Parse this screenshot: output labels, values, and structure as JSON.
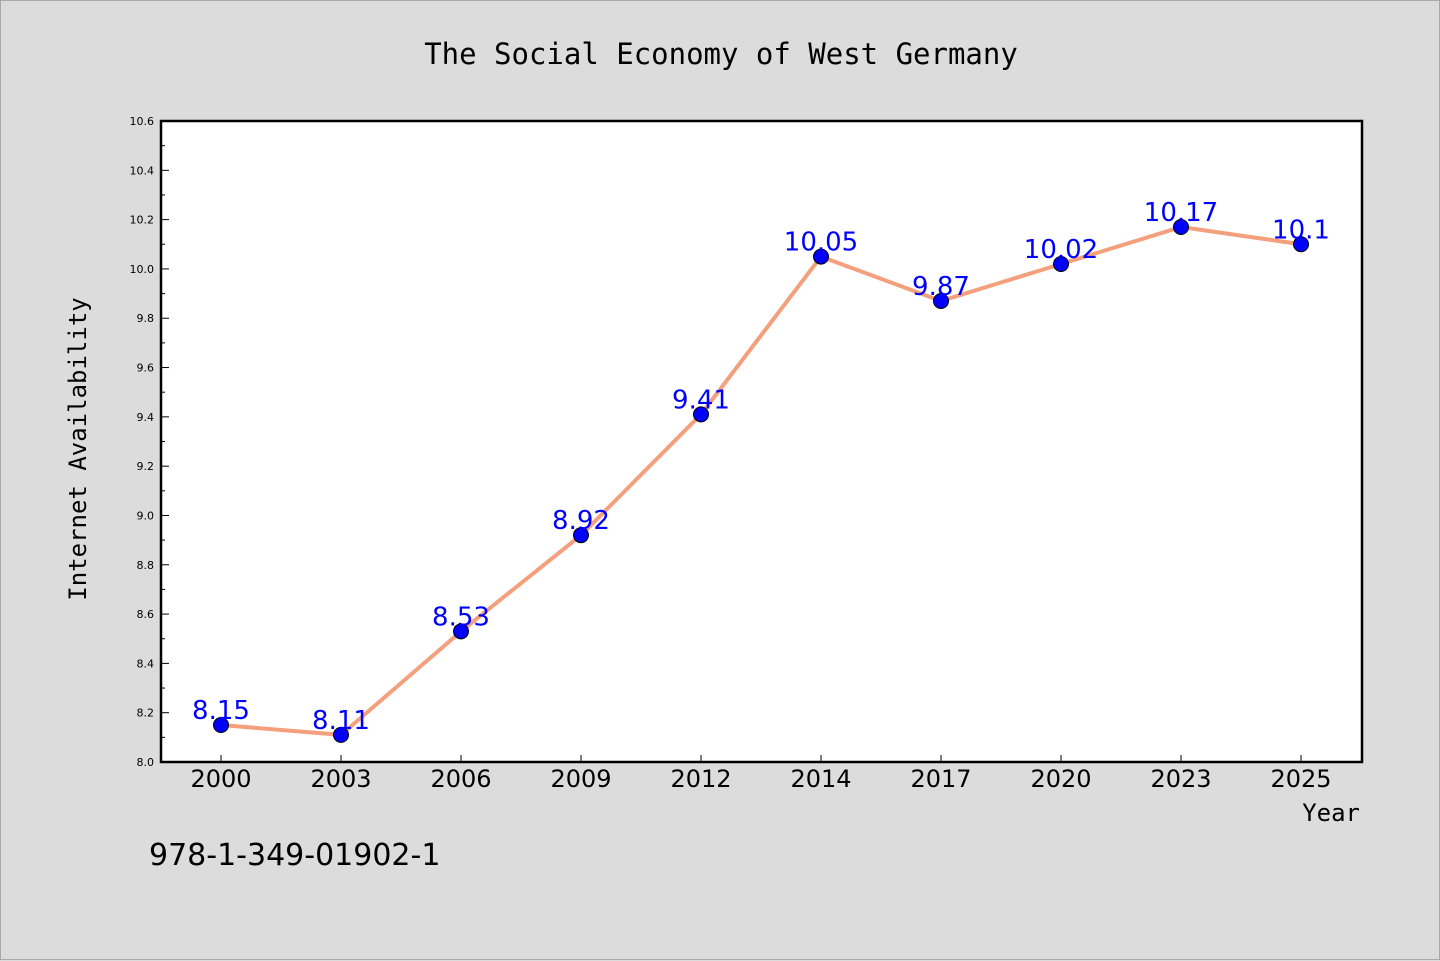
{
  "footnote": "978-1-349-01902-1",
  "colors": {
    "line": "#f4a07d",
    "marker": "#0000ff",
    "label": "#0000ff",
    "background": "#dcdcdc",
    "plot_area": "#ffffff"
  },
  "chart_data": {
    "type": "line",
    "title": "The Social Economy of West Germany",
    "xlabel": "Year",
    "ylabel": "Internet Availability",
    "categories": [
      "2000",
      "2003",
      "2006",
      "2009",
      "2012",
      "2014",
      "2017",
      "2020",
      "2023",
      "2025"
    ],
    "series": [
      {
        "values": [
          8.15,
          8.11,
          8.53,
          8.92,
          9.41,
          10.05,
          9.87,
          10.02,
          10.17,
          10.1
        ],
        "data_labels": [
          "8.15",
          "8.11",
          "8.53",
          "8.92",
          "9.41",
          "10.05",
          "9.87",
          "10.02",
          "10.17",
          "10.1"
        ]
      }
    ],
    "ylim": [
      8.0,
      10.6
    ],
    "yticks": [
      "8.0",
      "8.2",
      "8.4",
      "8.6",
      "8.8",
      "9.0",
      "9.2",
      "9.4",
      "9.6",
      "9.8",
      "10.0",
      "10.2",
      "10.4",
      "10.6"
    ],
    "grid": false,
    "legend": "none",
    "markers": "filled circles",
    "data_labels_shown": true
  }
}
